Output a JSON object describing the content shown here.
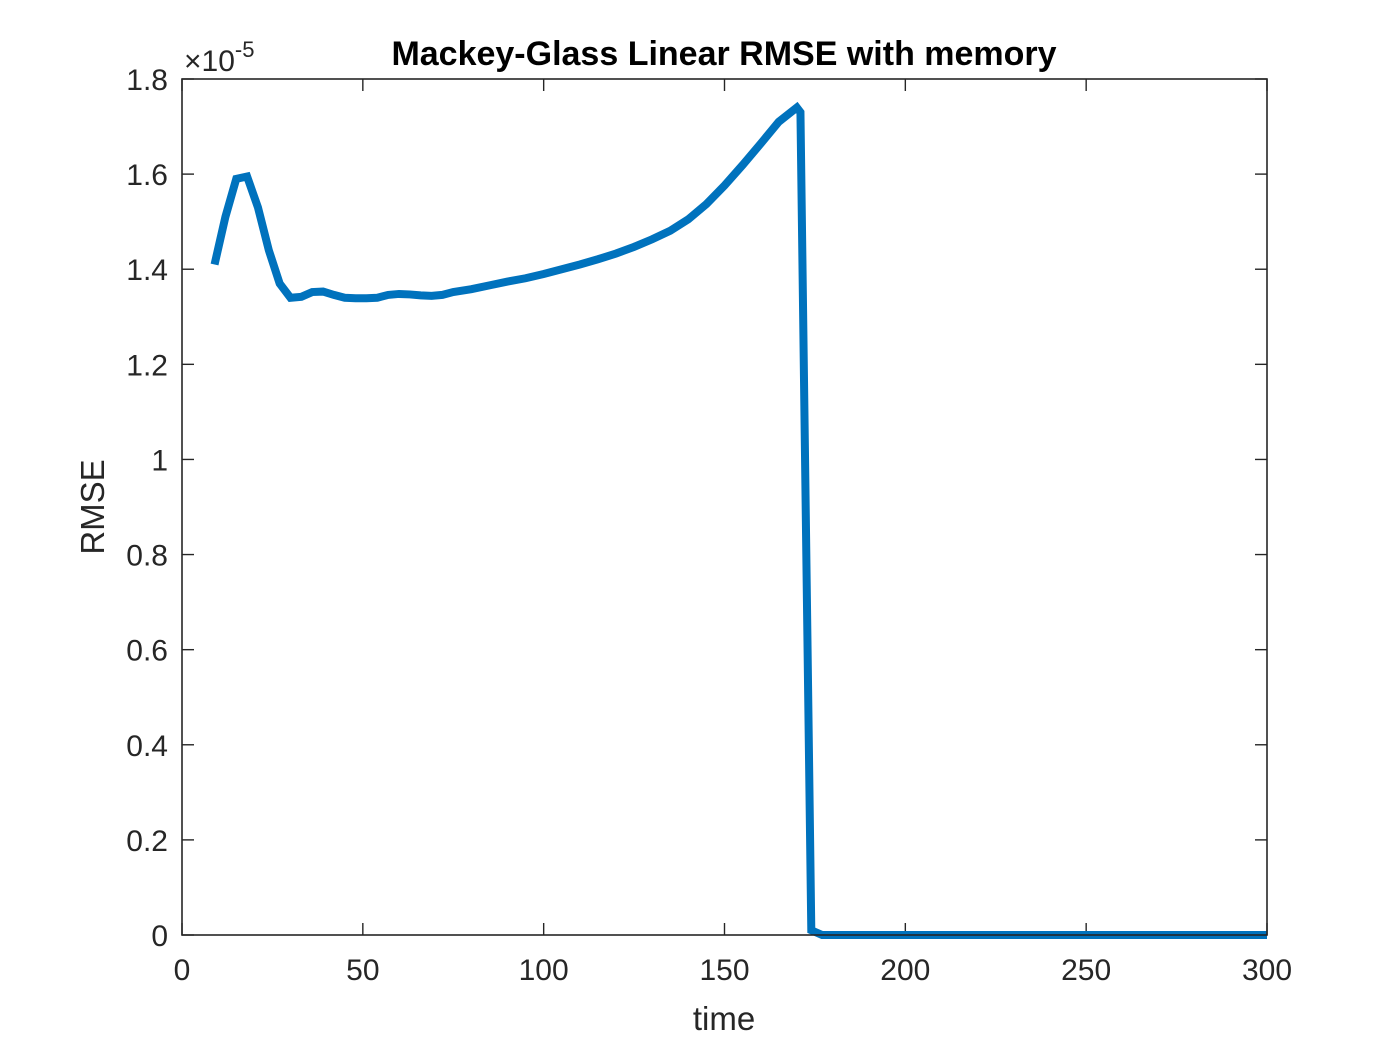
{
  "chart_data": {
    "type": "line",
    "title": "Mackey-Glass Linear RMSE with memory",
    "xlabel": "time",
    "ylabel": "RMSE",
    "xlim": [
      0,
      300
    ],
    "ylim": [
      0,
      1.8
    ],
    "y_exponent_label": "×10",
    "y_exponent_power": "-5",
    "xticks": [
      "0",
      "50",
      "100",
      "150",
      "200",
      "250",
      "300"
    ],
    "yticks": [
      "0",
      "0.2",
      "0.4",
      "0.6",
      "0.8",
      "1",
      "1.2",
      "1.4",
      "1.6",
      "1.8"
    ],
    "grid": false,
    "line_color": "#0072BD",
    "series": [
      {
        "x": [
          9,
          12,
          15,
          18,
          21,
          24,
          27,
          30,
          33,
          36,
          39,
          42,
          45,
          48,
          51,
          54,
          57,
          60,
          63,
          66,
          69,
          72,
          75,
          80,
          85,
          90,
          95,
          100,
          105,
          110,
          115,
          120,
          125,
          130,
          135,
          140,
          145,
          150,
          155,
          160,
          165,
          170,
          171,
          174,
          177,
          180,
          200,
          250,
          300
        ],
        "y": [
          1.41,
          1.51,
          1.59,
          1.595,
          1.53,
          1.44,
          1.37,
          1.34,
          1.342,
          1.352,
          1.353,
          1.346,
          1.34,
          1.339,
          1.339,
          1.34,
          1.346,
          1.348,
          1.347,
          1.345,
          1.344,
          1.346,
          1.352,
          1.358,
          1.366,
          1.374,
          1.381,
          1.39,
          1.4,
          1.41,
          1.421,
          1.433,
          1.447,
          1.463,
          1.481,
          1.505,
          1.537,
          1.576,
          1.619,
          1.664,
          1.71,
          1.74,
          1.73,
          0.01,
          0.0,
          0.0,
          0.0,
          0.0,
          0.0
        ]
      }
    ]
  }
}
